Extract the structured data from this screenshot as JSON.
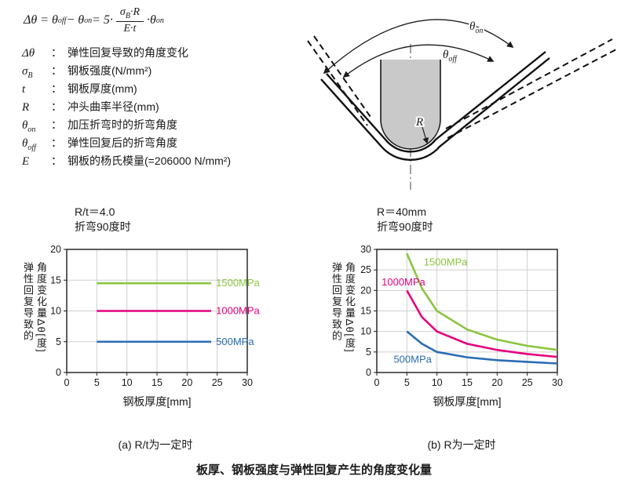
{
  "colors": {
    "green": "#8bc53f",
    "magenta": "#e6007e",
    "blue": "#2a6db5",
    "axis": "#1a1a1a",
    "grid": "#cfcfcf",
    "punch_gray": "#c9c9c9"
  },
  "formula": {
    "p1": "Δθ = θ",
    "p2": "off",
    "p3": " − θ",
    "p4": "on",
    "p5": " = 5·",
    "num_sigma": "σ",
    "num_sub": "B",
    "num_rest": "·R",
    "den": "E·t",
    "p6": "·θ",
    "p7": "on"
  },
  "legend": {
    "colon": "：",
    "items": [
      {
        "sym": "Δθ",
        "sub": "",
        "desc": "弹性回复导致的角度变化"
      },
      {
        "sym": "σ",
        "sub": "B",
        "desc": "钢板强度(N/mm²)"
      },
      {
        "sym": "t",
        "sub": "",
        "desc": "钢板厚度(mm)"
      },
      {
        "sym": "R",
        "sub": "",
        "desc": "冲头曲率半径(mm)"
      },
      {
        "sym": "θ",
        "sub": "on",
        "desc": "加压折弯时的折弯角度"
      },
      {
        "sym": "θ",
        "sub": "off",
        "desc": "弹性回复后的折弯角度"
      },
      {
        "sym": "E",
        "sub": "",
        "desc": "钢板的杨氏模量(=206000 N/mm²)"
      }
    ]
  },
  "diagram": {
    "theta": "θ",
    "sub_on": "on",
    "sub_off": "off",
    "radius": "R"
  },
  "chart_data": [
    {
      "type": "line",
      "title_lines": [
        "R/t＝4.0",
        "折弯90度时"
      ],
      "xlabel": "钢板厚度[mm]",
      "ylabel_lines": [
        "弹性回复导致的",
        "角度变化量Δθ[度]"
      ],
      "xlim": [
        0,
        30
      ],
      "ylim": [
        0,
        20
      ],
      "xticks": [
        0,
        5,
        10,
        15,
        20,
        25,
        30
      ],
      "yticks": [
        0,
        5,
        10,
        15,
        20
      ],
      "grid": true,
      "legend_position": "right-of-lines",
      "series": [
        {
          "name": "1500MPa",
          "color": "#8bc53f",
          "x": [
            5,
            24
          ],
          "y": [
            14.5,
            14.5
          ],
          "label_at": [
            24.8,
            14.5
          ]
        },
        {
          "name": "1000MPa",
          "color": "#e6007e",
          "x": [
            5,
            24
          ],
          "y": [
            10,
            10
          ],
          "label_at": [
            24.8,
            10
          ]
        },
        {
          "name": "500MPa",
          "color": "#2a6db5",
          "x": [
            5,
            24
          ],
          "y": [
            5,
            5
          ],
          "label_at": [
            24.8,
            5
          ]
        }
      ]
    },
    {
      "type": "line",
      "title_lines": [
        "R＝40mm",
        "折弯90度时"
      ],
      "xlabel": "钢板厚度[mm]",
      "ylabel_lines": [
        "弹性回复导致的",
        "角度变化量Δθ[度]"
      ],
      "xlim": [
        0,
        30
      ],
      "ylim": [
        0,
        30
      ],
      "xticks": [
        0,
        5,
        10,
        15,
        20,
        25,
        30
      ],
      "yticks": [
        0,
        5,
        10,
        15,
        20,
        25,
        30
      ],
      "grid": true,
      "legend_position": "inline",
      "series": [
        {
          "name": "1500MPa",
          "color": "#8bc53f",
          "x": [
            5,
            7.5,
            10,
            15,
            20,
            25,
            30
          ],
          "y": [
            29,
            20.5,
            15,
            10.5,
            8,
            6.5,
            5.5
          ],
          "label_at": [
            7.8,
            26.8
          ]
        },
        {
          "name": "1000MPa",
          "color": "#e6007e",
          "x": [
            5,
            7.5,
            10,
            15,
            20,
            25,
            30
          ],
          "y": [
            20,
            13.5,
            10,
            7,
            5.5,
            4.5,
            3.8
          ],
          "label_at": [
            0.8,
            22
          ]
        },
        {
          "name": "500MPa",
          "color": "#2a6db5",
          "x": [
            5,
            7.5,
            10,
            15,
            20,
            25,
            30
          ],
          "y": [
            10,
            7,
            5,
            3.7,
            3,
            2.6,
            2.2
          ],
          "label_at": [
            2.8,
            3.2
          ]
        }
      ]
    }
  ],
  "captions": {
    "a": "(a) R/t为一定时",
    "b": "(b) R为一定时"
  },
  "main_title": "板厚、钢板强度与弹性回复产生的角度变化量"
}
